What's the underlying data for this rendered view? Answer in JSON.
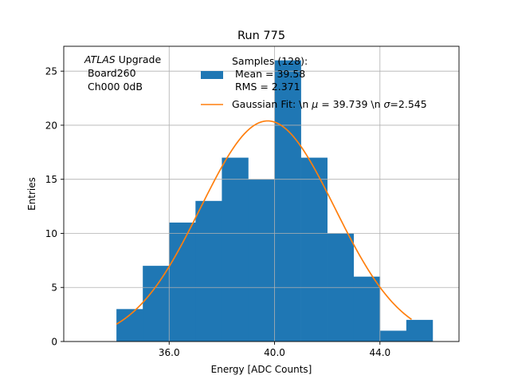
{
  "chart_data": {
    "type": "bar",
    "title": "Run 775",
    "xlabel": "Energy [ADC Counts]",
    "ylabel": "Entries",
    "xlim": [
      32.0,
      47.0
    ],
    "ylim": [
      0,
      27.3
    ],
    "xticks": [
      36.0,
      40.0,
      44.0
    ],
    "xtick_labels": [
      "36.0",
      "40.0",
      "44.0"
    ],
    "yticks": [
      0,
      5,
      10,
      15,
      20,
      25
    ],
    "ytick_labels": [
      "0",
      "5",
      "10",
      "15",
      "20",
      "25"
    ],
    "grid": true,
    "bins": [
      {
        "x0": 34.0,
        "x1": 35.0,
        "value": 3
      },
      {
        "x0": 35.0,
        "x1": 36.0,
        "value": 7
      },
      {
        "x0": 36.0,
        "x1": 37.0,
        "value": 11
      },
      {
        "x0": 37.0,
        "x1": 38.0,
        "value": 13
      },
      {
        "x0": 38.0,
        "x1": 39.0,
        "value": 17
      },
      {
        "x0": 39.0,
        "x1": 40.0,
        "value": 15
      },
      {
        "x0": 40.0,
        "x1": 41.0,
        "value": 26
      },
      {
        "x0": 41.0,
        "x1": 42.0,
        "value": 17
      },
      {
        "x0": 42.0,
        "x1": 43.0,
        "value": 10
      },
      {
        "x0": 43.0,
        "x1": 44.0,
        "value": 6
      },
      {
        "x0": 44.0,
        "x1": 45.0,
        "value": 1
      },
      {
        "x0": 45.0,
        "x1": 46.0,
        "value": 2
      }
    ],
    "fit": {
      "name": "Gaussian Fit",
      "mu": 39.739,
      "sigma": 2.545,
      "amplitude": 20.4,
      "x_range": [
        34.0,
        45.2
      ]
    },
    "colors": {
      "bars": "#1f77b4",
      "fit": "#ff7f0e",
      "grid": "#b0b0b0"
    },
    "annotation": {
      "atlas_italic": "ATLAS",
      "atlas_rest": " Upgrade",
      "line2": " Board260",
      "line3": " Ch000 0dB"
    },
    "legend": {
      "placement": "top-right",
      "samples_line1": "Samples (128):",
      "samples_line2": " Mean = 39.58",
      "samples_line3": " RMS = 2.371",
      "fit_prefix": "Gaussian Fit: \\n ",
      "fit_mu_symbol": "μ",
      "fit_mid": " = 39.739 \\n ",
      "fit_sigma_symbol": "σ",
      "fit_end": "=2.545"
    }
  }
}
